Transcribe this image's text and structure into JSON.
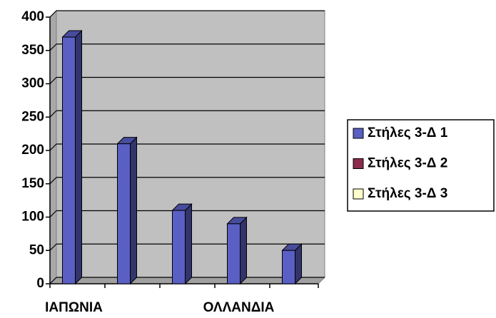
{
  "chart_data": {
    "type": "bar3d",
    "categories": [
      "ΙΑΠΩΝΙΑ",
      null,
      null,
      "ΟΛΛΑΝΔΙΑ",
      null
    ],
    "series": [
      {
        "name": "Στήλες 3-Δ 1",
        "color": "#5a5fc4",
        "values": [
          370,
          210,
          110,
          90,
          50
        ]
      },
      {
        "name": "Στήλες 3-Δ 2",
        "color": "#8c2c4c",
        "values": [
          null,
          null,
          null,
          null,
          null
        ]
      },
      {
        "name": "Στήλες 3-Δ 3",
        "color": "#ffffcc",
        "values": [
          null,
          null,
          null,
          null,
          null
        ]
      }
    ],
    "ylim": [
      0,
      400
    ],
    "yticks": [
      0,
      50,
      100,
      150,
      200,
      250,
      300,
      350,
      400
    ],
    "grid": true,
    "legend": "right"
  }
}
